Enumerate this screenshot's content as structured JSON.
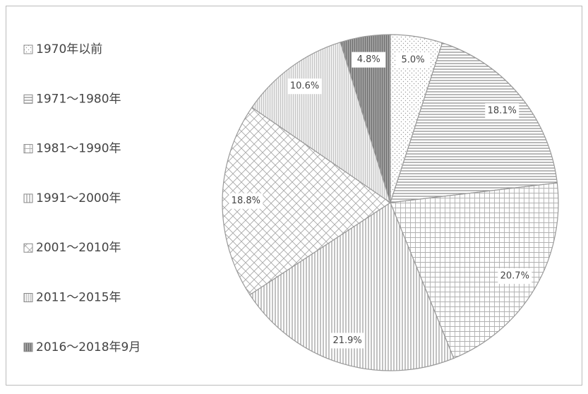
{
  "chart_data": {
    "type": "pie",
    "categories": [
      "1970年以前",
      "1971～1980年",
      "1981～1990年",
      "1991～2000年",
      "2001～2010年",
      "2011～2015年",
      "2016～2018年9月"
    ],
    "values": [
      5.0,
      18.1,
      20.7,
      21.9,
      18.8,
      10.6,
      4.8
    ],
    "value_labels": [
      "5.0%",
      "18.1%",
      "20.7%",
      "21.9%",
      "18.8%",
      "10.6%",
      "4.8%"
    ],
    "colors": [
      "#9a9a9a",
      "#8a8a8a",
      "#b0b0b0",
      "#999999",
      "#a8a8a8",
      "#c4c4c4",
      "#6e6e6e"
    ],
    "legend": "left"
  }
}
